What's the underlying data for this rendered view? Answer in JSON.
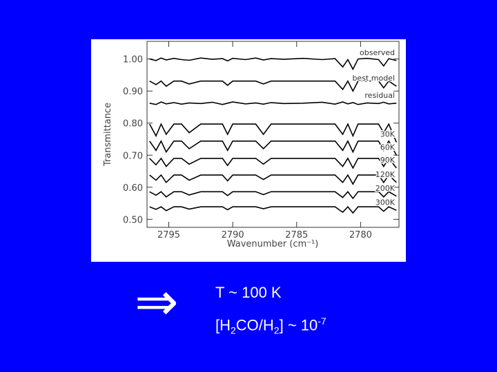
{
  "chart_data": {
    "type": "line",
    "xlabel": "Wavenumber (cm⁻¹)",
    "ylabel": "Transmittance",
    "x": [
      2796.5,
      2796.0,
      2795.6,
      2795.2,
      2794.6,
      2794.0,
      2793.4,
      2792.5,
      2791.6,
      2790.8,
      2790.4,
      2790.0,
      2789.0,
      2788.2,
      2787.6,
      2787.0,
      2786.0,
      2784.5,
      2783.0,
      2782.0,
      2781.4,
      2781.0,
      2780.6,
      2780.2,
      2779.5,
      2778.6,
      2778.2,
      2777.8,
      2777.2
    ],
    "xlim": [
      2796.7,
      2777.0
    ],
    "xticks": [
      2795,
      2790,
      2785,
      2780
    ],
    "ylim": [
      0.475,
      1.055
    ],
    "yticks": [
      {
        "value": 0.5,
        "label": "0.50"
      },
      {
        "value": 0.6,
        "label": "0.60"
      },
      {
        "value": 0.7,
        "label": "0.70"
      },
      {
        "value": 0.8,
        "label": "0.80"
      },
      {
        "value": 0.9,
        "label": "0.90"
      },
      {
        "value": 1.0,
        "label": "1.00"
      }
    ],
    "series": [
      {
        "name": "observed",
        "color": "#000000",
        "values": [
          1.0,
          0.995,
          1.003,
          0.997,
          1.002,
          0.998,
          0.996,
          1.003,
          0.999,
          1.001,
          0.994,
          1.002,
          0.998,
          1.003,
          0.997,
          1.001,
          0.999,
          1.002,
          0.998,
          1.001,
          0.975,
          0.998,
          0.968,
          1.0,
          1.002,
          0.998,
          0.978,
          1.001,
          0.995
        ]
      },
      {
        "name": "best model",
        "color": "#000000",
        "values": [
          0.931,
          0.92,
          0.931,
          0.915,
          0.931,
          0.931,
          0.922,
          0.931,
          0.931,
          0.931,
          0.918,
          0.931,
          0.931,
          0.931,
          0.922,
          0.931,
          0.931,
          0.931,
          0.931,
          0.931,
          0.905,
          0.931,
          0.9,
          0.931,
          0.931,
          0.931,
          0.91,
          0.931,
          0.915
        ]
      },
      {
        "name": "residual",
        "color": "#000000",
        "values": [
          0.862,
          0.858,
          0.866,
          0.86,
          0.864,
          0.859,
          0.863,
          0.861,
          0.865,
          0.858,
          0.862,
          0.866,
          0.86,
          0.863,
          0.859,
          0.864,
          0.861,
          0.862,
          0.865,
          0.859,
          0.866,
          0.86,
          0.864,
          0.858,
          0.863,
          0.861,
          0.865,
          0.86,
          0.862
        ]
      },
      {
        "name": "30K",
        "color": "#000000",
        "values": [
          0.797,
          0.76,
          0.797,
          0.765,
          0.797,
          0.797,
          0.77,
          0.797,
          0.797,
          0.797,
          0.765,
          0.797,
          0.797,
          0.797,
          0.765,
          0.797,
          0.797,
          0.797,
          0.797,
          0.797,
          0.765,
          0.797,
          0.76,
          0.797,
          0.797,
          0.797,
          0.77,
          0.797,
          0.74
        ]
      },
      {
        "name": "60K",
        "color": "#000000",
        "values": [
          0.744,
          0.715,
          0.744,
          0.71,
          0.744,
          0.744,
          0.72,
          0.744,
          0.744,
          0.744,
          0.715,
          0.744,
          0.744,
          0.744,
          0.72,
          0.744,
          0.744,
          0.744,
          0.744,
          0.744,
          0.715,
          0.744,
          0.71,
          0.744,
          0.744,
          0.744,
          0.715,
          0.744,
          0.7
        ]
      },
      {
        "name": "90K",
        "color": "#000000",
        "values": [
          0.69,
          0.67,
          0.69,
          0.665,
          0.69,
          0.69,
          0.672,
          0.69,
          0.69,
          0.69,
          0.668,
          0.69,
          0.69,
          0.69,
          0.672,
          0.69,
          0.69,
          0.69,
          0.69,
          0.69,
          0.665,
          0.69,
          0.66,
          0.69,
          0.69,
          0.69,
          0.665,
          0.69,
          0.66
        ]
      },
      {
        "name": "120K",
        "color": "#000000",
        "values": [
          0.638,
          0.622,
          0.638,
          0.615,
          0.638,
          0.638,
          0.622,
          0.638,
          0.638,
          0.638,
          0.62,
          0.638,
          0.638,
          0.638,
          0.624,
          0.638,
          0.638,
          0.638,
          0.638,
          0.638,
          0.615,
          0.638,
          0.61,
          0.638,
          0.638,
          0.638,
          0.615,
          0.638,
          0.615
        ]
      },
      {
        "name": "200K",
        "color": "#000000",
        "values": [
          0.586,
          0.575,
          0.586,
          0.57,
          0.586,
          0.586,
          0.576,
          0.586,
          0.586,
          0.586,
          0.574,
          0.586,
          0.586,
          0.586,
          0.577,
          0.586,
          0.586,
          0.586,
          0.586,
          0.586,
          0.568,
          0.586,
          0.565,
          0.586,
          0.586,
          0.586,
          0.57,
          0.586,
          0.572
        ]
      },
      {
        "name": "300K",
        "color": "#000000",
        "values": [
          0.539,
          0.531,
          0.539,
          0.527,
          0.539,
          0.539,
          0.532,
          0.539,
          0.539,
          0.539,
          0.53,
          0.539,
          0.539,
          0.539,
          0.533,
          0.539,
          0.539,
          0.539,
          0.539,
          0.539,
          0.522,
          0.539,
          0.52,
          0.539,
          0.539,
          0.539,
          0.525,
          0.539,
          0.528
        ]
      }
    ]
  },
  "conclusion": {
    "temperature": "T ~ 100 K",
    "abundance": [
      "[H",
      "2",
      "CO/H",
      "2",
      "] ~ 10",
      "-7"
    ]
  }
}
